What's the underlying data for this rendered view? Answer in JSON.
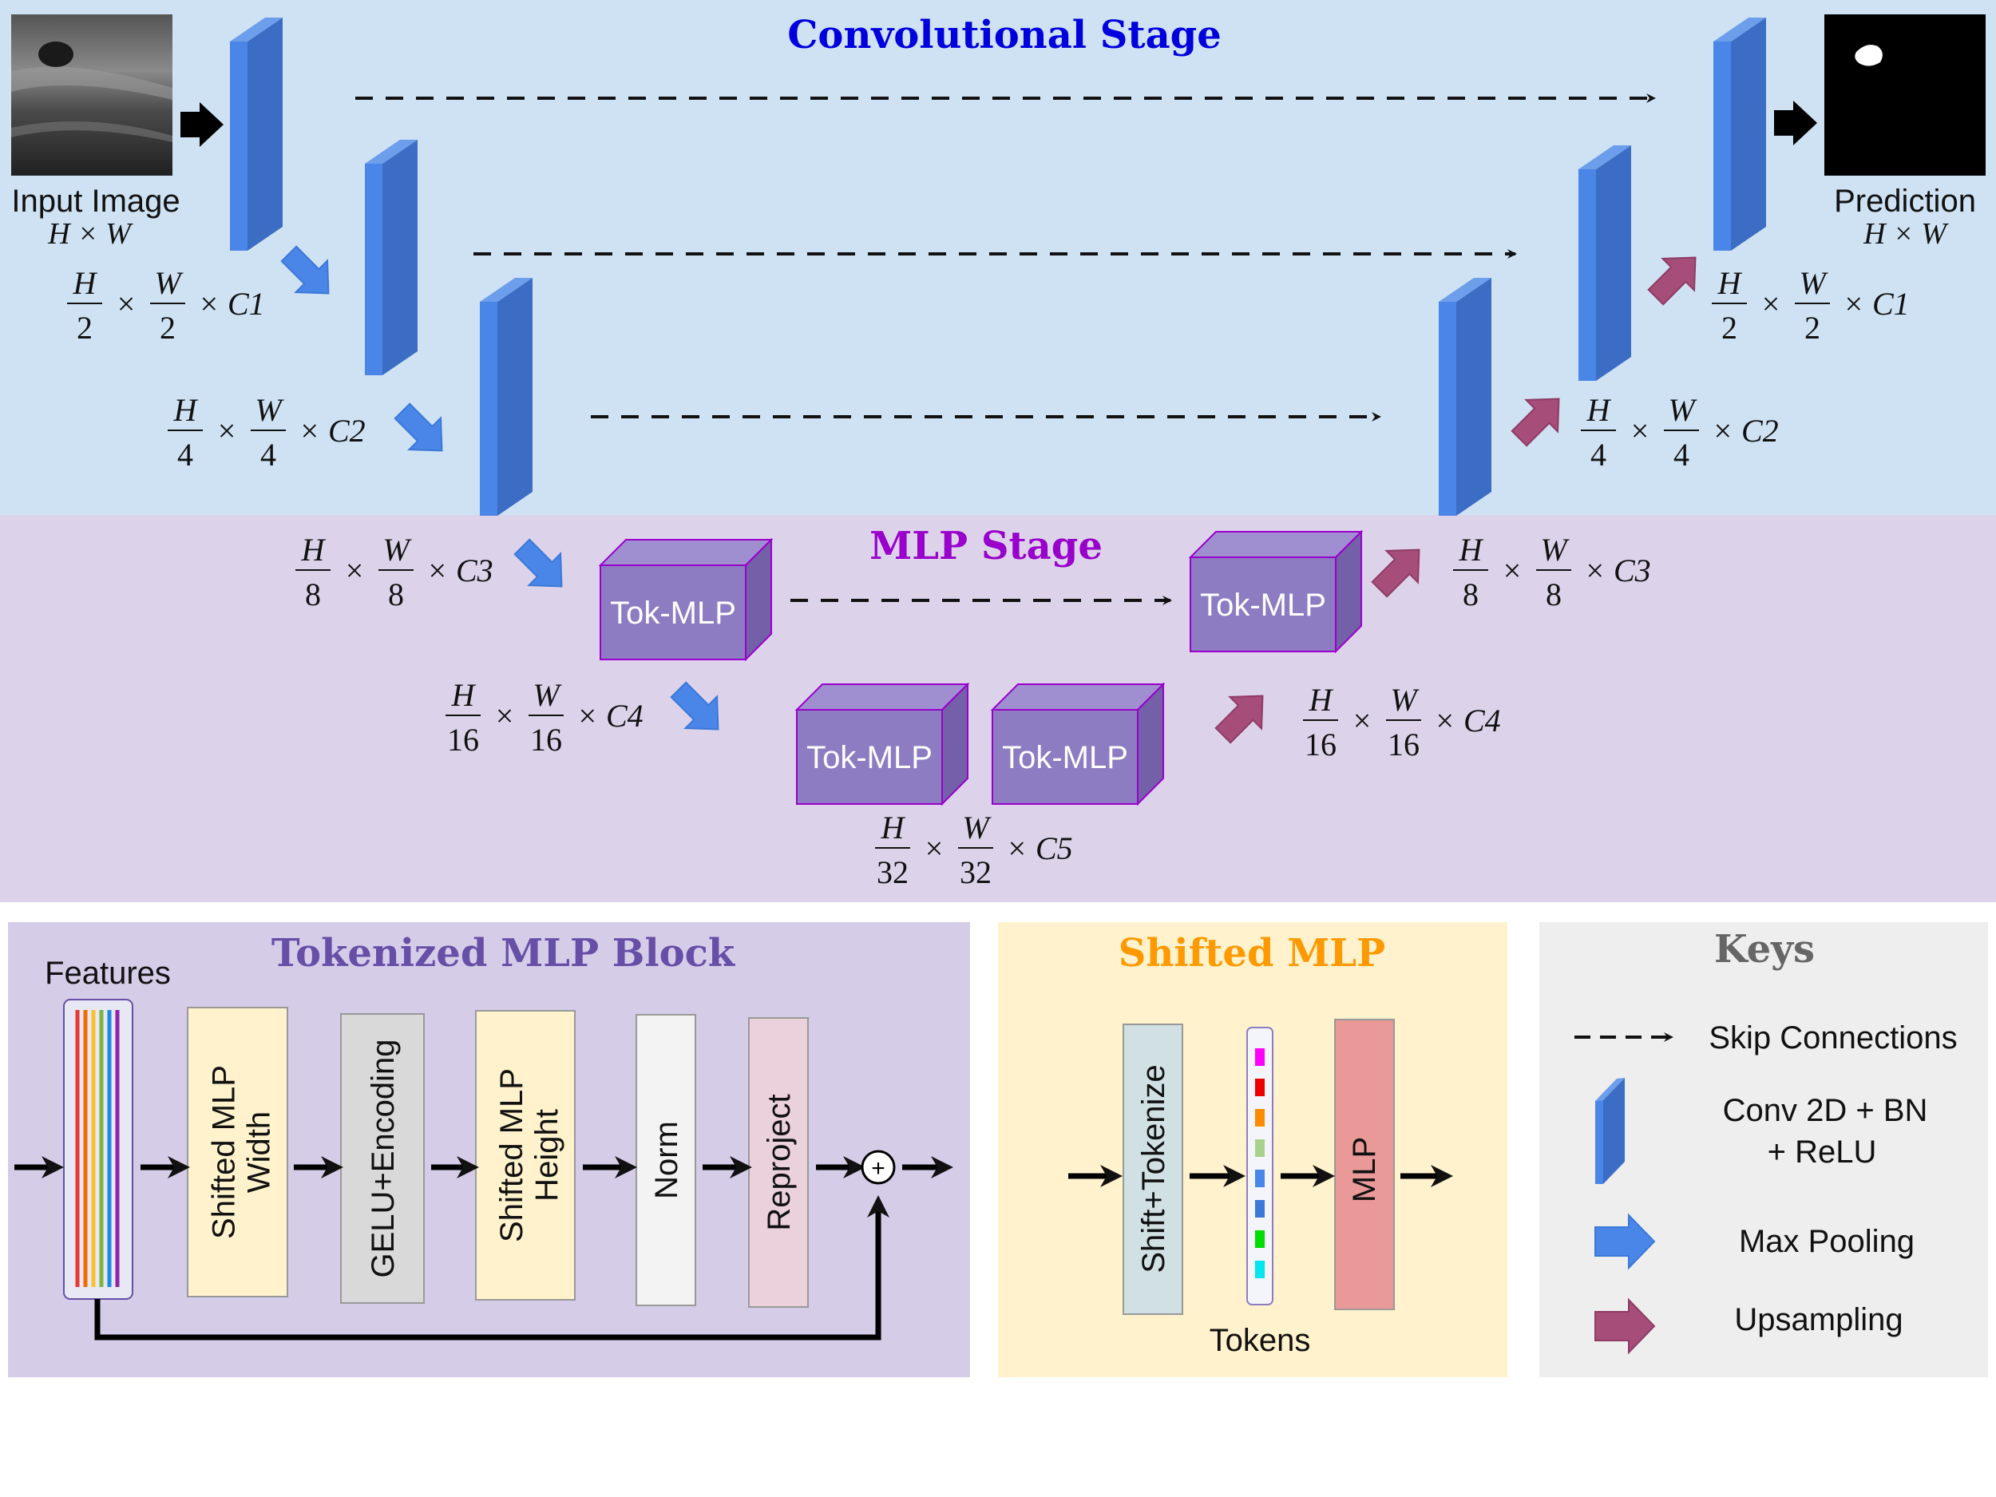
{
  "colors": {
    "conv_stage_bg": "#cfe2f3",
    "mlp_stage_bg": "#dcd3ea",
    "tok_block_bg": "#d5cce8",
    "shifted_bg": "#fff2cc",
    "keys_bg": "#eeeeee",
    "conv_title": "#0000dd",
    "mlp_title": "#9900cc",
    "tok_title": "#674ea7",
    "shifted_title": "#ff9900",
    "keys_title": "#666666",
    "conv_block": "#4a86e8",
    "tokmlp_box": "#8e7cc3",
    "maxpool_arrow": "#4a86e8",
    "upsample_arrow": "#a64d79"
  },
  "titles": {
    "conv_stage": "Convolutional Stage",
    "mlp_stage": "MLP Stage",
    "tok_block": "Tokenized MLP Block",
    "shifted_mlp": "Shifted MLP",
    "keys": "Keys"
  },
  "io": {
    "input_label": "Input Image",
    "prediction_label": "Prediction"
  },
  "dims": {
    "input": {
      "lead": "H × W"
    },
    "pred": {
      "lead": "H × W"
    },
    "e1": {
      "n1": "H",
      "d1": "2",
      "n2": "W",
      "d2": "2",
      "tail": "× C1"
    },
    "e2": {
      "n1": "H",
      "d1": "4",
      "n2": "W",
      "d2": "4",
      "tail": "× C2"
    },
    "e3": {
      "n1": "H",
      "d1": "8",
      "n2": "W",
      "d2": "8",
      "tail": "× C3"
    },
    "e4": {
      "n1": "H",
      "d1": "16",
      "n2": "W",
      "d2": "16",
      "tail": "× C4"
    },
    "b5": {
      "n1": "H",
      "d1": "32",
      "n2": "W",
      "d2": "32",
      "tail": "× C5"
    },
    "d4": {
      "n1": "H",
      "d1": "16",
      "n2": "W",
      "d2": "16",
      "tail": "× C4"
    },
    "d3": {
      "n1": "H",
      "d1": "8",
      "n2": "W",
      "d2": "8",
      "tail": "× C3"
    },
    "d2": {
      "n1": "H",
      "d1": "4",
      "n2": "W",
      "d2": "4",
      "tail": "× C2"
    },
    "d1": {
      "n1": "H",
      "d1": "2",
      "n2": "W",
      "d2": "2",
      "tail": "× C1"
    }
  },
  "tok_mlp_label": "Tok-MLP",
  "tok_block": {
    "features_label": "Features",
    "stages": [
      {
        "line1": "Shifted MLP",
        "line2": "Width",
        "fill": "#fff2cc"
      },
      {
        "line1": "GELU+Encoding",
        "line2": "",
        "fill": "#d9d9d9"
      },
      {
        "line1": "Shifted MLP",
        "line2": "Height",
        "fill": "#fff2cc"
      },
      {
        "line1": "Norm",
        "line2": "",
        "fill": "#f3f3f3"
      },
      {
        "line1": "Reproject",
        "line2": "",
        "fill": "#ead1dc"
      }
    ],
    "feature_colors": [
      "#e53935",
      "#ef6c00",
      "#fbc02d",
      "#7cb342",
      "#1e88e5",
      "#8e24aa"
    ],
    "plus": "+"
  },
  "shifted_mlp": {
    "shift_label": "Shift+Tokenize",
    "mlp_label": "MLP",
    "tokens_label": "Tokens",
    "token_colors": [
      "#ff00ff",
      "#ee0000",
      "#ff8c00",
      "#a9d18e",
      "#4a86e8",
      "#3c78d8",
      "#00dd00",
      "#00e5ee"
    ]
  },
  "keys": {
    "skip": "Skip Connections",
    "conv_line1": "Conv 2D + BN",
    "conv_line2": "+ ReLU",
    "maxpool": "Max Pooling",
    "upsampling": "Upsampling"
  }
}
